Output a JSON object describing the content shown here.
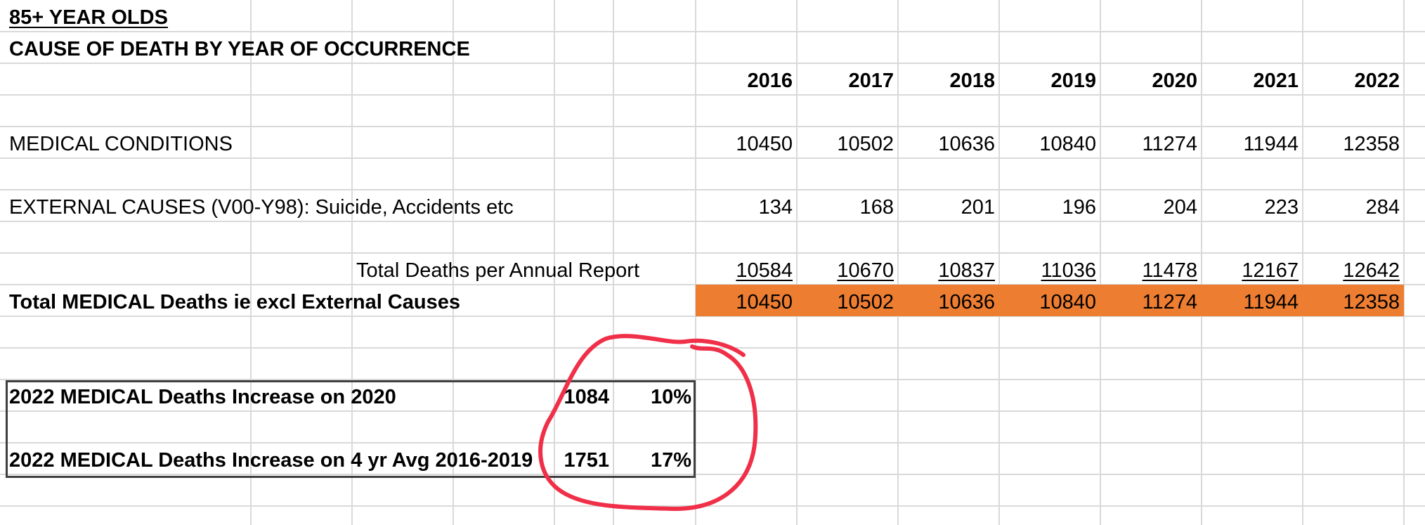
{
  "sheet": {
    "title": "85+ YEAR OLDS",
    "subtitle": "CAUSE OF DEATH BY YEAR OF OCCURRENCE",
    "years": [
      "2016",
      "2017",
      "2018",
      "2019",
      "2020",
      "2021",
      "2022"
    ],
    "rows": {
      "medical": {
        "label": "MEDICAL CONDITIONS",
        "values": [
          "10450",
          "10502",
          "10636",
          "10840",
          "11274",
          "11944",
          "12358"
        ]
      },
      "external": {
        "label": "EXTERNAL CAUSES (V00-Y98): Suicide, Accidents etc",
        "values": [
          "134",
          "168",
          "201",
          "196",
          "204",
          "223",
          "284"
        ]
      },
      "total_annual": {
        "label": "Total Deaths per Annual Report",
        "values": [
          "10584",
          "10670",
          "10837",
          "11036",
          "11478",
          "12167",
          "12642"
        ]
      },
      "total_medical": {
        "label": "Total MEDICAL Deaths ie excl External Causes",
        "values": [
          "10450",
          "10502",
          "10636",
          "10840",
          "11274",
          "11944",
          "12358"
        ]
      }
    },
    "summary": [
      {
        "label": "2022 MEDICAL Deaths Increase on 2020",
        "value": "1084",
        "percent": "10%"
      },
      {
        "label": "2022 MEDICAL Deaths Increase on 4 yr Avg 2016-2019",
        "value": "1751",
        "percent": "17%"
      }
    ]
  },
  "colors": {
    "highlight_fill": "#ED7D31",
    "gridline": "#D9D9D9",
    "annotation": "#F02F48"
  }
}
